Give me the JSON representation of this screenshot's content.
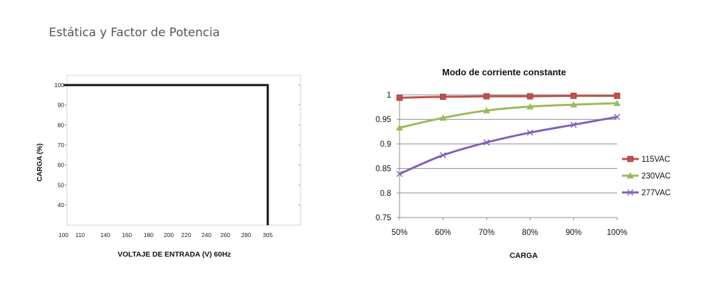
{
  "page": {
    "title": "Estática y Factor de Potencia"
  },
  "chart_data": [
    {
      "type": "line",
      "xlabel": "VOLTAJE DE ENTRADA (V) 60Hz",
      "ylabel": "CARGA (%)",
      "x_ticks": [
        100,
        110,
        140,
        160,
        180,
        200,
        220,
        240,
        260,
        280,
        305
      ],
      "y_ticks": [
        40,
        50,
        60,
        70,
        80,
        90,
        100
      ],
      "grid": true,
      "series": [
        {
          "x": [
            100,
            305,
            305
          ],
          "y": [
            100,
            100,
            30
          ],
          "color": "#111111"
        }
      ]
    },
    {
      "type": "line",
      "title": "Modo de corriente constante",
      "xlabel": "CARGA",
      "categories": [
        "50%",
        "60%",
        "70%",
        "80%",
        "90%",
        "100%"
      ],
      "ylim": [
        0.75,
        1
      ],
      "y_ticks": [
        "0.75",
        "0.8",
        "0.85",
        "0.9",
        "0.95",
        "1"
      ],
      "grid": true,
      "legend_position": "right",
      "series": [
        {
          "name": "115VAC",
          "values": [
            0.994,
            0.996,
            0.997,
            0.997,
            0.998,
            0.998
          ],
          "color": "#c0504d",
          "marker": "square"
        },
        {
          "name": "230VAC",
          "values": [
            0.933,
            0.953,
            0.968,
            0.976,
            0.98,
            0.983
          ],
          "color": "#9bbb59",
          "marker": "triangle"
        },
        {
          "name": "277VAC",
          "values": [
            0.839,
            0.877,
            0.903,
            0.923,
            0.939,
            0.955
          ],
          "color": "#7f62b6",
          "marker": "x"
        }
      ]
    }
  ]
}
